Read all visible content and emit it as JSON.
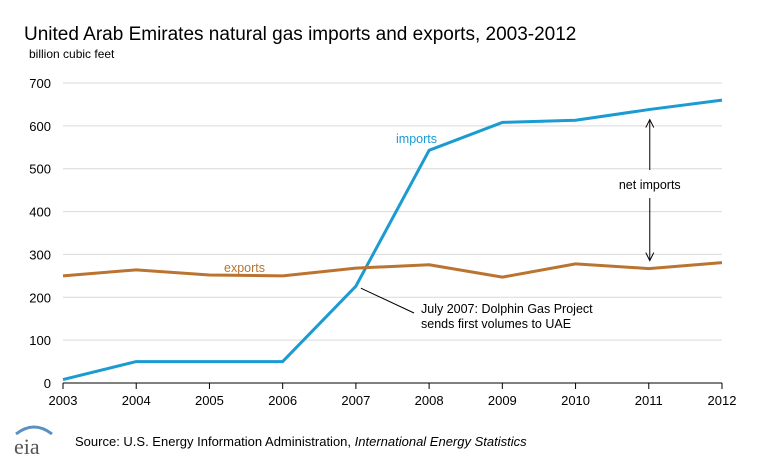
{
  "chart_data": {
    "type": "line",
    "title": "United Arab Emirates natural gas imports and exports, 2003-2012",
    "ylabel": "billion cubic feet",
    "xlabel": "",
    "x": [
      2003,
      2004,
      2005,
      2006,
      2007,
      2008,
      2009,
      2010,
      2011,
      2012
    ],
    "xlim": [
      2003,
      2012
    ],
    "ylim": [
      0,
      700
    ],
    "yticks": [
      0,
      100,
      200,
      300,
      400,
      500,
      600,
      700
    ],
    "grid": true,
    "series": [
      {
        "name": "imports",
        "color": "#1a9bd2",
        "values": [
          8,
          50,
          50,
          50,
          226,
          543,
          608,
          613,
          638,
          660
        ]
      },
      {
        "name": "exports",
        "color": "#bb7430",
        "values": [
          250,
          264,
          252,
          250,
          268,
          276,
          247,
          278,
          267,
          281
        ]
      }
    ],
    "annotations": {
      "net_imports": "net imports",
      "dolphin_line1": "July 2007:  Dolphin Gas Project",
      "dolphin_line2": "sends first volumes  to UAE"
    }
  },
  "source": {
    "prefix": "Source:  U.S. Energy Information  Administration, ",
    "italic": "International Energy Statistics"
  },
  "logo": {
    "text": "eia",
    "icon": "eia-logo-icon"
  }
}
